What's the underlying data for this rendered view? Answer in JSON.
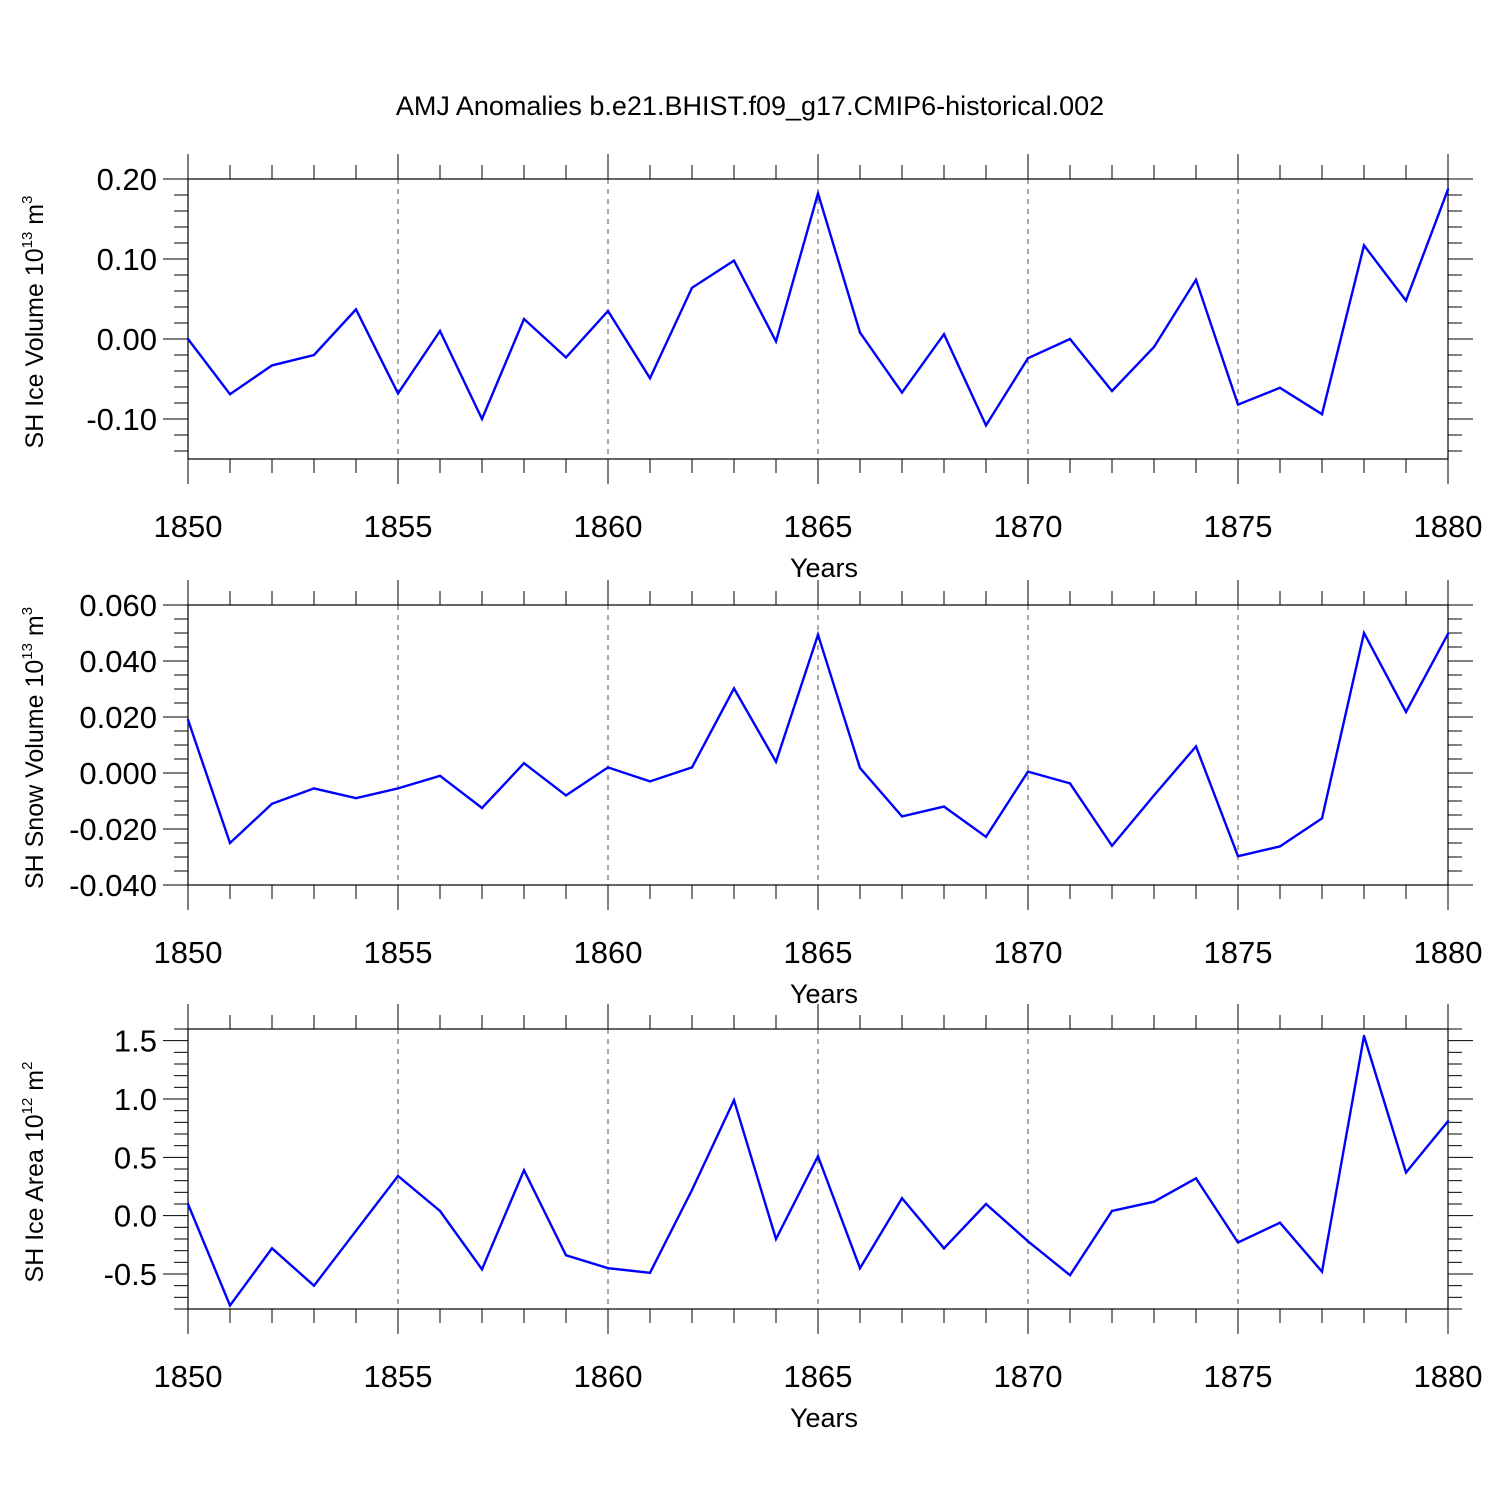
{
  "title": "AMJ Anomalies b.e21.BHIST.f09_g17.CMIP6-historical.002",
  "line_color": "#0000ff",
  "chart_data": [
    {
      "type": "line",
      "title": "AMJ Anomalies b.e21.BHIST.f09_g17.CMIP6-historical.002",
      "xlabel": "Years",
      "ylabel_main": "SH Ice Volume 10",
      "ylabel_sup1": "13",
      "ylabel_mid": " m",
      "ylabel_sup2": "3",
      "xlim": [
        1850,
        1880
      ],
      "ylim": [
        -0.15,
        0.2
      ],
      "xticks": [
        1850,
        1855,
        1860,
        1865,
        1870,
        1875,
        1880
      ],
      "yticks": [
        -0.1,
        0.0,
        0.1,
        0.2
      ],
      "ytick_labels": [
        "-0.10",
        "0.00",
        "0.10",
        "0.20"
      ],
      "yminor_step": 0.02,
      "grid": "x-dashed",
      "series": [
        {
          "name": "SH Ice Volume",
          "x": [
            1850,
            1851,
            1852,
            1853,
            1854,
            1855,
            1856,
            1857,
            1858,
            1859,
            1860,
            1861,
            1862,
            1863,
            1864,
            1865,
            1866,
            1867,
            1868,
            1869,
            1870,
            1871,
            1872,
            1873,
            1874,
            1875,
            1876,
            1877,
            1878,
            1879,
            1880
          ],
          "values": [
            0.0,
            -0.069,
            -0.033,
            -0.02,
            0.037,
            -0.068,
            0.01,
            -0.1,
            0.025,
            -0.023,
            0.035,
            -0.049,
            0.064,
            0.098,
            -0.003,
            0.182,
            0.008,
            -0.067,
            0.006,
            -0.108,
            -0.024,
            0.0,
            -0.065,
            -0.01,
            0.074,
            -0.082,
            -0.061,
            -0.094,
            0.117,
            0.048,
            0.187
          ]
        }
      ]
    },
    {
      "type": "line",
      "xlabel": "Years",
      "ylabel_main": "SH Snow Volume 10",
      "ylabel_sup1": "13",
      "ylabel_mid": " m",
      "ylabel_sup2": "3",
      "xlim": [
        1850,
        1880
      ],
      "ylim": [
        -0.04,
        0.06
      ],
      "xticks": [
        1850,
        1855,
        1860,
        1865,
        1870,
        1875,
        1880
      ],
      "yticks": [
        -0.04,
        -0.02,
        0.0,
        0.02,
        0.04,
        0.06
      ],
      "ytick_labels": [
        "-0.040",
        "-0.020",
        "0.000",
        "0.020",
        "0.040",
        "0.060"
      ],
      "yminor_step": 0.005,
      "grid": "x-dashed",
      "series": [
        {
          "name": "SH Snow Volume",
          "x": [
            1850,
            1851,
            1852,
            1853,
            1854,
            1855,
            1856,
            1857,
            1858,
            1859,
            1860,
            1861,
            1862,
            1863,
            1864,
            1865,
            1866,
            1867,
            1868,
            1869,
            1870,
            1871,
            1872,
            1873,
            1874,
            1875,
            1876,
            1877,
            1878,
            1879,
            1880
          ],
          "values": [
            0.019,
            -0.025,
            -0.011,
            -0.0055,
            -0.009,
            -0.0055,
            -0.001,
            -0.0125,
            0.0035,
            -0.008,
            0.002,
            -0.003,
            0.002,
            0.0302,
            0.004,
            0.0494,
            0.0018,
            -0.0155,
            -0.012,
            -0.0228,
            0.0005,
            -0.0037,
            -0.026,
            -0.008,
            0.0095,
            -0.0297,
            -0.0262,
            -0.0162,
            0.05,
            0.0218,
            0.0497
          ]
        }
      ]
    },
    {
      "type": "line",
      "xlabel": "Years",
      "ylabel_main": "SH Ice Area 10",
      "ylabel_sup1": "12",
      "ylabel_mid": " m",
      "ylabel_sup2": "2",
      "xlim": [
        1850,
        1880
      ],
      "ylim": [
        -0.8,
        1.6
      ],
      "xticks": [
        1850,
        1855,
        1860,
        1865,
        1870,
        1875,
        1880
      ],
      "yticks": [
        -0.5,
        0.0,
        0.5,
        1.0,
        1.5
      ],
      "ytick_labels": [
        "-0.5",
        "0.0",
        "0.5",
        "1.0",
        "1.5"
      ],
      "yminor_step": 0.1,
      "grid": "x-dashed",
      "series": [
        {
          "name": "SH Ice Area",
          "x": [
            1850,
            1851,
            1852,
            1853,
            1854,
            1855,
            1856,
            1857,
            1858,
            1859,
            1860,
            1861,
            1862,
            1863,
            1864,
            1865,
            1866,
            1867,
            1868,
            1869,
            1870,
            1871,
            1872,
            1873,
            1874,
            1875,
            1876,
            1877,
            1878,
            1879,
            1880
          ],
          "values": [
            0.1,
            -0.77,
            -0.28,
            -0.6,
            -0.13,
            0.34,
            0.04,
            -0.46,
            0.39,
            -0.34,
            -0.45,
            -0.49,
            0.22,
            0.99,
            -0.2,
            0.51,
            -0.45,
            0.15,
            -0.28,
            0.1,
            -0.22,
            -0.51,
            0.04,
            0.12,
            0.32,
            -0.23,
            -0.06,
            -0.48,
            1.54,
            0.37,
            0.81
          ]
        }
      ]
    }
  ]
}
